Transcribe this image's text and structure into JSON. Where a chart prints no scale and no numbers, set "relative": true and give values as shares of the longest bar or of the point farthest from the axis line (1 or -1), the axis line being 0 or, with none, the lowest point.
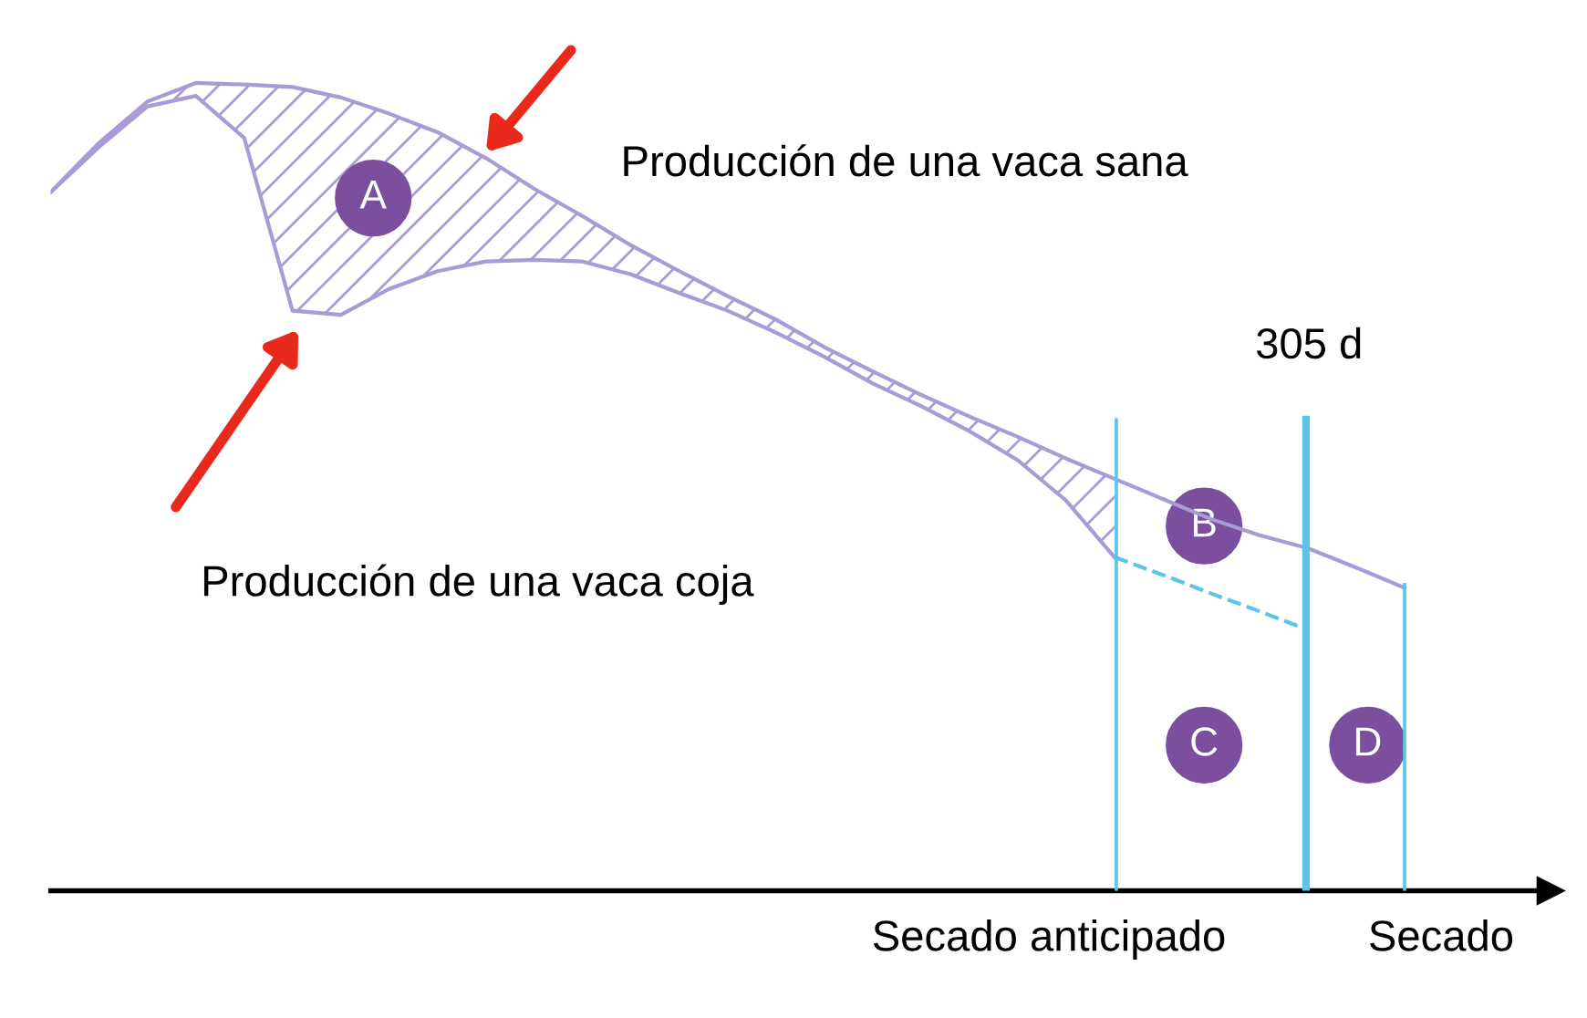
{
  "chart_data": {
    "type": "line",
    "relative": true,
    "categories": [
      null,
      null,
      null,
      null,
      null,
      null,
      null,
      null,
      null,
      null,
      null,
      null,
      null,
      null,
      null,
      null,
      null,
      null,
      null,
      null,
      null,
      null,
      null,
      null,
      null,
      null,
      null,
      null,
      null
    ],
    "series": [
      {
        "color": "#a99bd6",
        "values": [
          0.865,
          0.926,
          0.977,
          1.0,
          0.998,
          0.995,
          0.982,
          0.962,
          0.939,
          0.907,
          0.869,
          0.835,
          0.799,
          0.767,
          0.736,
          0.707,
          0.673,
          0.643,
          0.614,
          0.587,
          0.562,
          0.535,
          0.51,
          0.485,
          0.46,
          0.44,
          0.424,
          0.4,
          0.375
        ],
        "lower": [
          0.865,
          0.921,
          0.971,
          0.984,
          0.932,
          0.718,
          0.713,
          0.745,
          0.767,
          0.779,
          0.781,
          0.779,
          0.763,
          0.74,
          0.718,
          0.691,
          0.661,
          0.628,
          0.6,
          0.569,
          0.533,
          0.483,
          0.413,
          null,
          null,
          null,
          null,
          null,
          null
        ],
        "upper": [
          0.865,
          0.926,
          0.977,
          1.0,
          0.998,
          0.995,
          0.982,
          0.962,
          0.939,
          0.907,
          0.869,
          0.835,
          0.799,
          0.767,
          0.736,
          0.707,
          0.673,
          0.643,
          0.614,
          0.587,
          0.562,
          0.535,
          0.51,
          null,
          null,
          null,
          null,
          null,
          null
        ]
      },
      {
        "color": "#a99bd6",
        "values": [
          0.865,
          0.921,
          0.971,
          0.984,
          0.932,
          0.718,
          0.713,
          0.745,
          0.767,
          0.779,
          0.781,
          0.779,
          0.763,
          0.74,
          0.718,
          0.691,
          0.661,
          0.628,
          0.6,
          0.569,
          0.533,
          0.483,
          0.413,
          null,
          null,
          null,
          null,
          null,
          null
        ]
      },
      {
        "color": "#5bc4e8",
        "line_style": "dashed",
        "values": [
          null,
          null,
          null,
          null,
          null,
          null,
          null,
          null,
          null,
          null,
          null,
          null,
          null,
          null,
          null,
          null,
          null,
          null,
          null,
          null,
          null,
          null,
          0.413,
          0.391,
          0.368,
          0.346,
          0.323,
          null,
          null
        ]
      }
    ],
    "annotations": [
      "Producción de una vaca sana",
      "Producción de una vaca coja",
      "305 d",
      "A",
      "B",
      "C",
      "D",
      "Secado anticipado",
      "Secado"
    ]
  }
}
